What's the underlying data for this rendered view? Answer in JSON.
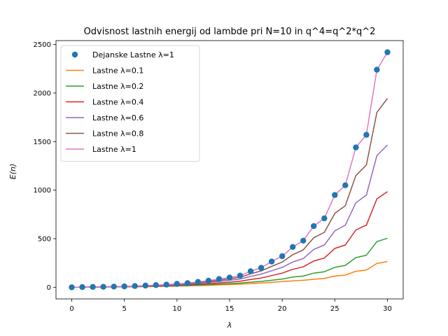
{
  "chart_data": {
    "type": "line",
    "title": "Odvisnost lastnih energij od lambde pri N=10 in q^4=q^2*q^2",
    "xlabel": "λ",
    "ylabel": "E(n)",
    "xlim": [
      -1.5,
      31.5
    ],
    "ylim": [
      -120,
      2540
    ],
    "xticks": [
      0,
      5,
      10,
      15,
      20,
      25,
      30
    ],
    "yticks": [
      0,
      500,
      1000,
      1500,
      2000,
      2500
    ],
    "grid": false,
    "legend_position": "top-left",
    "x": [
      0,
      1,
      2,
      3,
      4,
      5,
      6,
      7,
      8,
      9,
      10,
      11,
      12,
      13,
      14,
      15,
      16,
      17,
      18,
      19,
      20,
      21,
      22,
      23,
      24,
      25,
      26,
      27,
      28,
      29,
      30
    ],
    "series": [
      {
        "name": "Dejanske Lastne  λ=1",
        "kind": "scatter",
        "color": "#1f77b4",
        "values": [
          0,
          2,
          3,
          5,
          7,
          9,
          13,
          17,
          22,
          27,
          35,
          42,
          55,
          68,
          85,
          100,
          120,
          165,
          200,
          265,
          320,
          415,
          480,
          630,
          710,
          950,
          1050,
          1440,
          1570,
          2240,
          2420
        ]
      },
      {
        "name": "Lastne  λ=0.1",
        "kind": "line",
        "color": "#ff7f0e",
        "values": [
          0,
          1,
          1,
          2,
          3,
          4,
          5,
          6,
          8,
          10,
          12,
          14,
          17,
          20,
          24,
          28,
          32,
          38,
          44,
          50,
          58,
          65,
          72,
          82,
          92,
          115,
          125,
          165,
          178,
          245,
          265
        ]
      },
      {
        "name": "Lastne  λ=0.2",
        "kind": "line",
        "color": "#2ca02c",
        "values": [
          0,
          1,
          2,
          3,
          4,
          5,
          7,
          9,
          11,
          13,
          16,
          19,
          23,
          27,
          32,
          37,
          43,
          52,
          60,
          72,
          85,
          105,
          115,
          145,
          160,
          205,
          225,
          305,
          330,
          470,
          505
        ]
      },
      {
        "name": "Lastne  λ=0.4",
        "kind": "line",
        "color": "#d62728",
        "values": [
          0,
          1,
          2,
          3,
          5,
          6,
          8,
          11,
          13,
          16,
          20,
          25,
          30,
          37,
          45,
          52,
          62,
          80,
          95,
          120,
          145,
          185,
          210,
          270,
          300,
          400,
          435,
          590,
          640,
          910,
          985
        ]
      },
      {
        "name": "Lastne λ=0.6",
        "kind": "line",
        "color": "#9467bd",
        "values": [
          0,
          2,
          3,
          4,
          6,
          7,
          10,
          13,
          16,
          20,
          25,
          31,
          40,
          50,
          60,
          72,
          85,
          112,
          135,
          170,
          205,
          260,
          295,
          390,
          435,
          580,
          640,
          870,
          950,
          1355,
          1465
        ]
      },
      {
        "name": "Lastne  λ=0.8",
        "kind": "line",
        "color": "#8c564b",
        "values": [
          0,
          2,
          3,
          4,
          6,
          8,
          11,
          15,
          19,
          24,
          30,
          37,
          47,
          58,
          72,
          87,
          103,
          138,
          168,
          215,
          260,
          335,
          385,
          510,
          565,
          760,
          840,
          1150,
          1260,
          1800,
          1945
        ]
      },
      {
        "name": "Lastne  λ=1",
        "kind": "line",
        "color": "#e377c2",
        "values": [
          0,
          2,
          3,
          5,
          7,
          9,
          13,
          17,
          22,
          27,
          35,
          42,
          55,
          68,
          85,
          100,
          120,
          165,
          200,
          265,
          320,
          415,
          480,
          630,
          710,
          950,
          1050,
          1440,
          1570,
          2240,
          2420
        ]
      }
    ]
  }
}
